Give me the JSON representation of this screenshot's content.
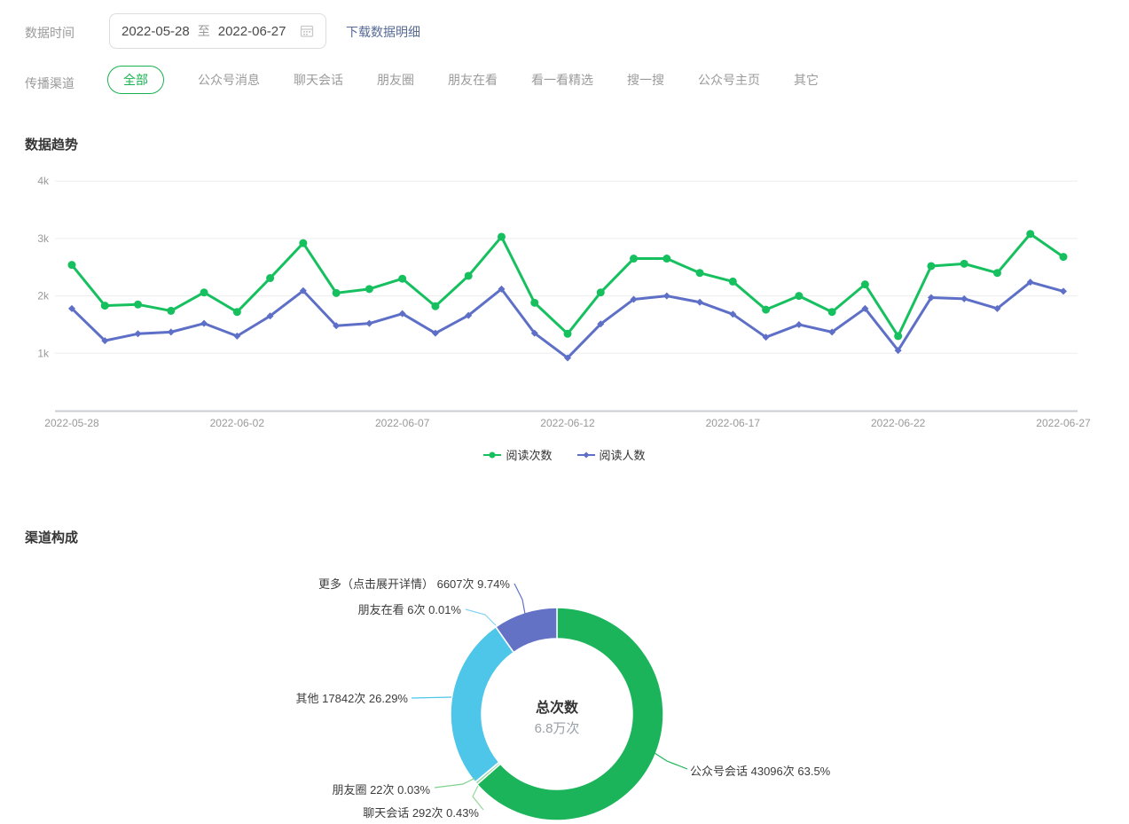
{
  "filters": {
    "date_label": "数据时间",
    "date_start": "2022-05-28",
    "date_separator": "至",
    "date_end": "2022-06-27",
    "download_link": "下载数据明细",
    "channel_label": "传播渠道",
    "channels": [
      "全部",
      "公众号消息",
      "聊天会话",
      "朋友圈",
      "朋友在看",
      "看一看精选",
      "搜一搜",
      "公众号主页",
      "其它"
    ],
    "selected_channel": "全部"
  },
  "trend_section": {
    "title": "数据趋势"
  },
  "composition_section": {
    "title": "渠道构成"
  },
  "colors": {
    "accent_green": "#18b350",
    "link_blue": "#576b95",
    "axis_label_gray": "#999999",
    "grid_line": "#ededed",
    "axis_line": "#c9ccd2"
  },
  "chart_data": [
    {
      "type": "line",
      "title": "数据趋势",
      "x": [
        "2022-05-28",
        "2022-05-29",
        "2022-05-30",
        "2022-05-31",
        "2022-06-01",
        "2022-06-02",
        "2022-06-03",
        "2022-06-04",
        "2022-06-05",
        "2022-06-06",
        "2022-06-07",
        "2022-06-08",
        "2022-06-09",
        "2022-06-10",
        "2022-06-11",
        "2022-06-12",
        "2022-06-13",
        "2022-06-14",
        "2022-06-15",
        "2022-06-16",
        "2022-06-17",
        "2022-06-18",
        "2022-06-19",
        "2022-06-20",
        "2022-06-21",
        "2022-06-22",
        "2022-06-23",
        "2022-06-24",
        "2022-06-25",
        "2022-06-26",
        "2022-06-27"
      ],
      "x_tick_labels": [
        "2022-05-28",
        "2022-06-02",
        "2022-06-07",
        "2022-06-12",
        "2022-06-17",
        "2022-06-22",
        "2022-06-27"
      ],
      "yticks": [
        "1k",
        "2k",
        "3k",
        "4k"
      ],
      "ylim": [
        0,
        4000
      ],
      "grid": true,
      "legend_position": "bottom",
      "series": [
        {
          "name": "阅读次数",
          "color": "#16c05f",
          "values": [
            2540,
            1830,
            1850,
            1740,
            2060,
            1720,
            2310,
            2920,
            2050,
            2120,
            2300,
            1820,
            2350,
            3030,
            1880,
            1340,
            2060,
            2650,
            2650,
            2400,
            2250,
            1760,
            2000,
            1720,
            2200,
            1300,
            2520,
            2560,
            2400,
            3080,
            2680
          ]
        },
        {
          "name": "阅读人数",
          "color": "#5e6fc7",
          "values": [
            1780,
            1220,
            1340,
            1370,
            1520,
            1300,
            1650,
            2090,
            1480,
            1520,
            1690,
            1350,
            1660,
            2120,
            1350,
            920,
            1510,
            1940,
            2000,
            1890,
            1680,
            1280,
            1500,
            1370,
            1780,
            1050,
            1970,
            1950,
            1780,
            2240,
            2080
          ]
        }
      ]
    },
    {
      "type": "pie",
      "title": "渠道构成",
      "center_label": "总次数",
      "center_value": "6.8万次",
      "slices": [
        {
          "name": "公众号会话",
          "count": "43096次",
          "percent": "63.5%",
          "value": 63.5,
          "color": "#1cb45a"
        },
        {
          "name": "聊天会话",
          "count": "292次",
          "percent": "0.43%",
          "value": 0.43,
          "color": "#95d89c"
        },
        {
          "name": "朋友圈",
          "count": "22次",
          "percent": "0.03%",
          "value": 0.03,
          "color": "#7ed28f"
        },
        {
          "name": "其他",
          "count": "17842次",
          "percent": "26.29%",
          "value": 26.29,
          "color": "#4ec6ea"
        },
        {
          "name": "朋友在看",
          "count": "6次",
          "percent": "0.01%",
          "value": 0.01,
          "color": "#85d2f3"
        },
        {
          "name": "更多（点击展开详情）",
          "count": "6607次",
          "percent": "9.74%",
          "value": 9.74,
          "color": "#6372c5"
        }
      ]
    }
  ]
}
